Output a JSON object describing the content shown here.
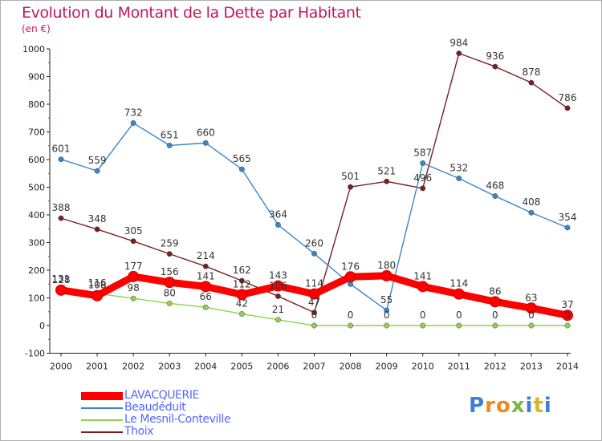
{
  "chart_data": {
    "type": "line",
    "title": "Evolution du Montant de la Dette par Habitant",
    "subtitle": "(en €)",
    "x": [
      "2000",
      "2001",
      "2002",
      "2003",
      "2004",
      "2005",
      "2006",
      "2007",
      "2008",
      "2009",
      "2010",
      "2011",
      "2012",
      "2013",
      "2014"
    ],
    "ylim": [
      -100,
      1000
    ],
    "yticks": [
      -100,
      0,
      100,
      200,
      300,
      400,
      500,
      600,
      700,
      800,
      900,
      1000
    ],
    "grid": false,
    "legend_position": "bottom-left",
    "series": [
      {
        "name": "LAVACQUERIE",
        "color": "#ff0000",
        "values": [
          128,
          108,
          177,
          156,
          141,
          112,
          143,
          114,
          176,
          180,
          141,
          114,
          86,
          63,
          37
        ]
      },
      {
        "name": "Beaudéduit",
        "color": "#3d85c6",
        "values": [
          601,
          559,
          732,
          651,
          660,
          565,
          364,
          260,
          150,
          55,
          587,
          532,
          468,
          408,
          354
        ]
      },
      {
        "name": "Le Mesnil-Conteville",
        "color": "#8fd14f",
        "values": [
          131,
          116,
          98,
          80,
          66,
          42,
          21,
          0,
          0,
          0,
          0,
          0,
          0,
          0,
          0
        ]
      },
      {
        "name": "Thoix",
        "color": "#7a1f1f",
        "values": [
          388,
          348,
          305,
          259,
          214,
          162,
          106,
          47,
          501,
          521,
          496,
          984,
          936,
          878,
          786
        ]
      }
    ],
    "data_labels": {
      "LAVACQUERIE": [
        "128",
        "108",
        "177",
        "156",
        "141",
        "112",
        "143",
        "114",
        "176",
        "180",
        "141",
        "114",
        "86",
        "63",
        "37"
      ],
      "Beaudéduit": [
        "601",
        "559",
        "732",
        "651",
        "660",
        "565",
        "364",
        "260",
        "",
        "55",
        "587",
        "532",
        "468",
        "408",
        "354"
      ],
      "Le Mesnil-Conteville": [
        "131",
        "116",
        "98",
        "80",
        "66",
        "42",
        "21",
        "0",
        "0",
        "0",
        "0",
        "0",
        "0",
        "0",
        "0"
      ],
      "Thoix": [
        "388",
        "348",
        "305",
        "259",
        "214",
        "162",
        "106",
        "47",
        "501",
        "521",
        "496",
        "984",
        "936",
        "878",
        "786"
      ]
    }
  },
  "logo": {
    "text": "Proxiti",
    "letters": [
      "P",
      "r",
      "o",
      "x",
      "i",
      "t",
      "i"
    ],
    "colors": [
      "#3d7fd6",
      "#f08a1c",
      "#f08a1c",
      "#7ab648",
      "#3d7fd6",
      "#d8b820",
      "#3d7fd6"
    ]
  }
}
